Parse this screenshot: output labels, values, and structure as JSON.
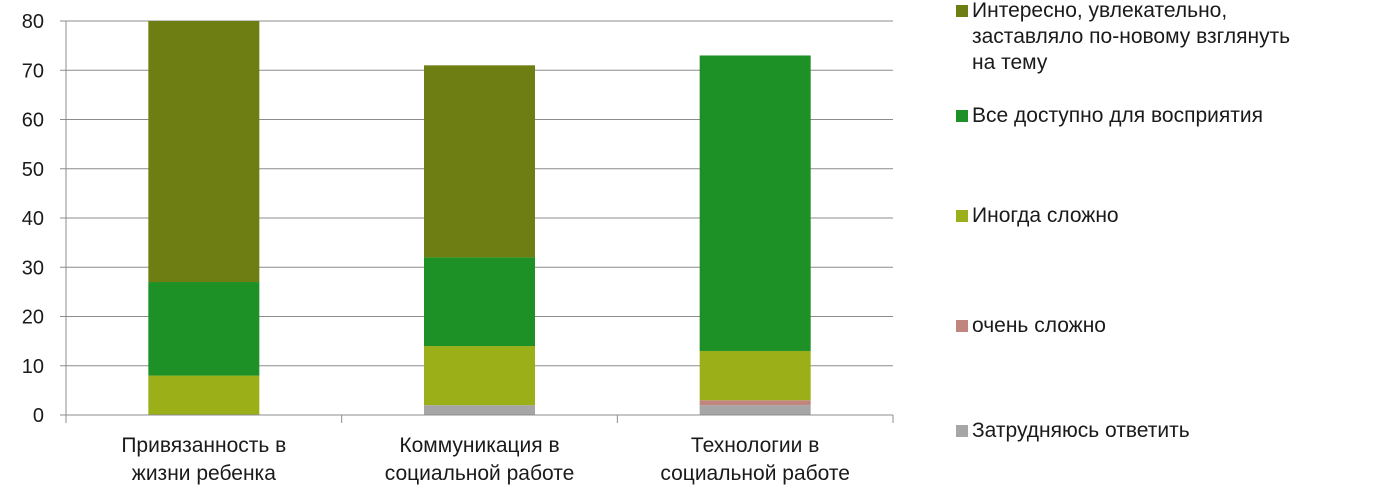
{
  "chart_data": {
    "type": "bar",
    "stacked": true,
    "categories": [
      [
        "Привязанность в",
        "жизни ребенка"
      ],
      [
        "Коммуникация в",
        "социальной работе"
      ],
      [
        "Технологии в",
        "социальной работе"
      ]
    ],
    "ylim": [
      0,
      80
    ],
    "yticks": [
      "0",
      "10",
      "20",
      "30",
      "40",
      "50",
      "60",
      "70",
      "80"
    ],
    "grid": true,
    "legend_position": "right",
    "series": [
      {
        "name": "Затрудняюсь ответить",
        "color": "#a6a6a6",
        "values": [
          0,
          2,
          2
        ]
      },
      {
        "name": "очень сложно",
        "color": "#c0857c",
        "values": [
          0,
          0,
          1
        ]
      },
      {
        "name": "Иногда сложно",
        "color": "#9aaf18",
        "values": [
          8,
          12,
          10
        ]
      },
      {
        "name": "Все доступно для восприятия",
        "color": "#1d9126",
        "values": [
          19,
          18,
          60
        ]
      },
      {
        "name": "Интересно, увлекательно, заставляло по-новому взглянуть на тему",
        "color": "#6e7e13",
        "values": [
          53,
          39,
          0
        ]
      }
    ],
    "legend": [
      {
        "lines": [
          "Интересно, увлекательно,",
          "заставляло по-новому взглянуть",
          "на тему"
        ],
        "color": "#6e7e13"
      },
      {
        "lines": [
          "Все доступно для восприятия"
        ],
        "color": "#1d9126"
      },
      {
        "lines": [
          "Иногда сложно"
        ],
        "color": "#9aaf18"
      },
      {
        "lines": [
          "очень сложно"
        ],
        "color": "#c0857c"
      },
      {
        "lines": [
          "Затрудняюсь ответить"
        ],
        "color": "#a6a6a6"
      }
    ]
  }
}
